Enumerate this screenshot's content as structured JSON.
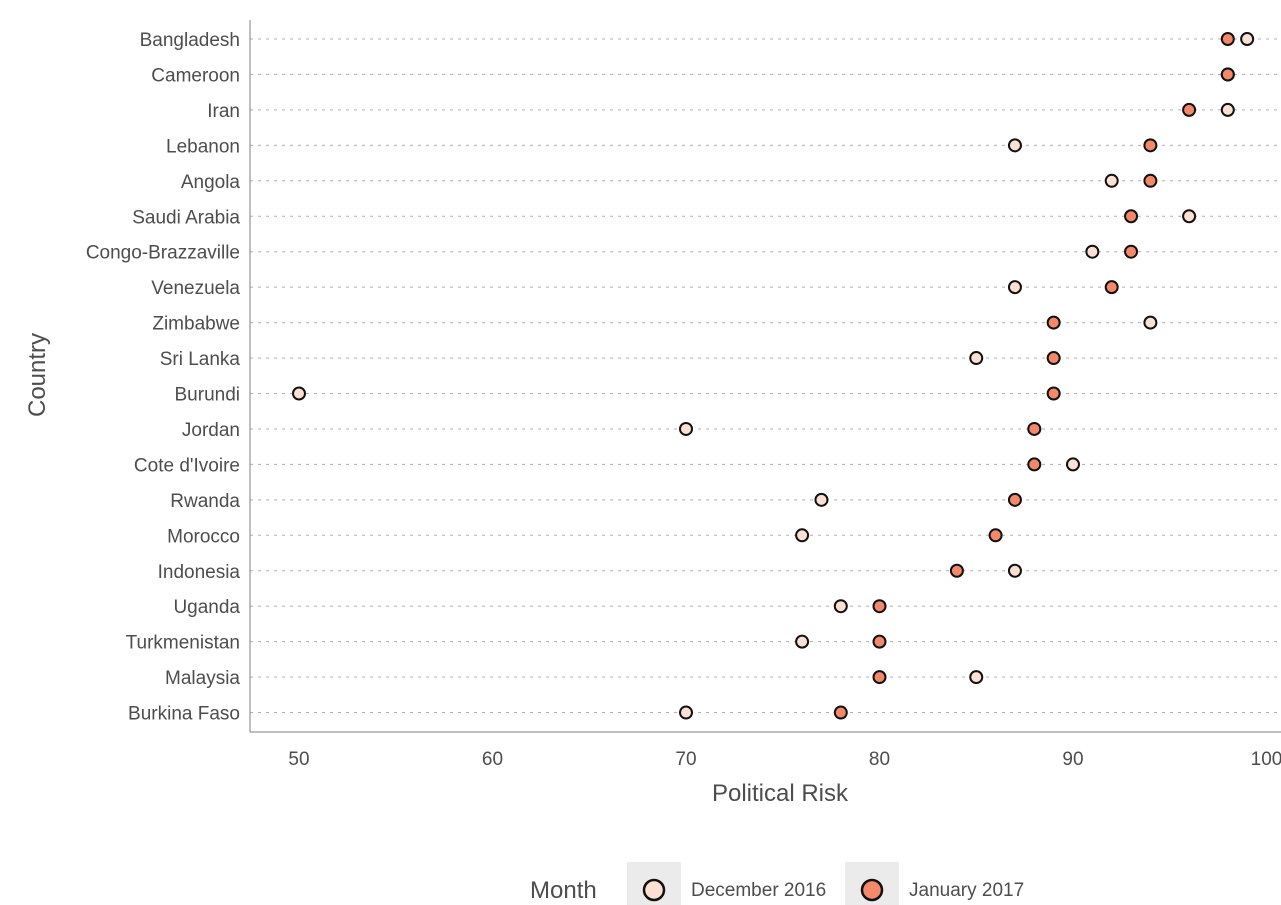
{
  "chart_data": {
    "type": "scatter",
    "subtype": "dot-plot",
    "xlabel": "Political Risk",
    "ylabel": "Country",
    "xlim": [
      47.5,
      100.5
    ],
    "xticks": [
      50,
      60,
      70,
      80,
      90,
      100
    ],
    "grid": "horizontal dashed",
    "legend": {
      "title": "Month",
      "position": "bottom"
    },
    "categories": [
      "Bangladesh",
      "Cameroon",
      "Iran",
      "Lebanon",
      "Angola",
      "Saudi Arabia",
      "Congo-Brazzaville",
      "Venezuela",
      "Zimbabwe",
      "Sri Lanka",
      "Burundi",
      "Jordan",
      "Cote d'Ivoire",
      "Rwanda",
      "Morocco",
      "Indonesia",
      "Uganda",
      "Turkmenistan",
      "Malaysia",
      "Burkina Faso"
    ],
    "series": [
      {
        "name": "December 2016",
        "color": "#fde0d2",
        "values": [
          99,
          98,
          98,
          87,
          92,
          96,
          91,
          87,
          94,
          85,
          50,
          70,
          90,
          77,
          76,
          87,
          78,
          76,
          85,
          70
        ]
      },
      {
        "name": "January 2017",
        "color": "#f4886a",
        "values": [
          98,
          98,
          96,
          94,
          94,
          93,
          93,
          92,
          89,
          89,
          89,
          88,
          88,
          87,
          86,
          84,
          80,
          80,
          80,
          78
        ]
      }
    ]
  }
}
